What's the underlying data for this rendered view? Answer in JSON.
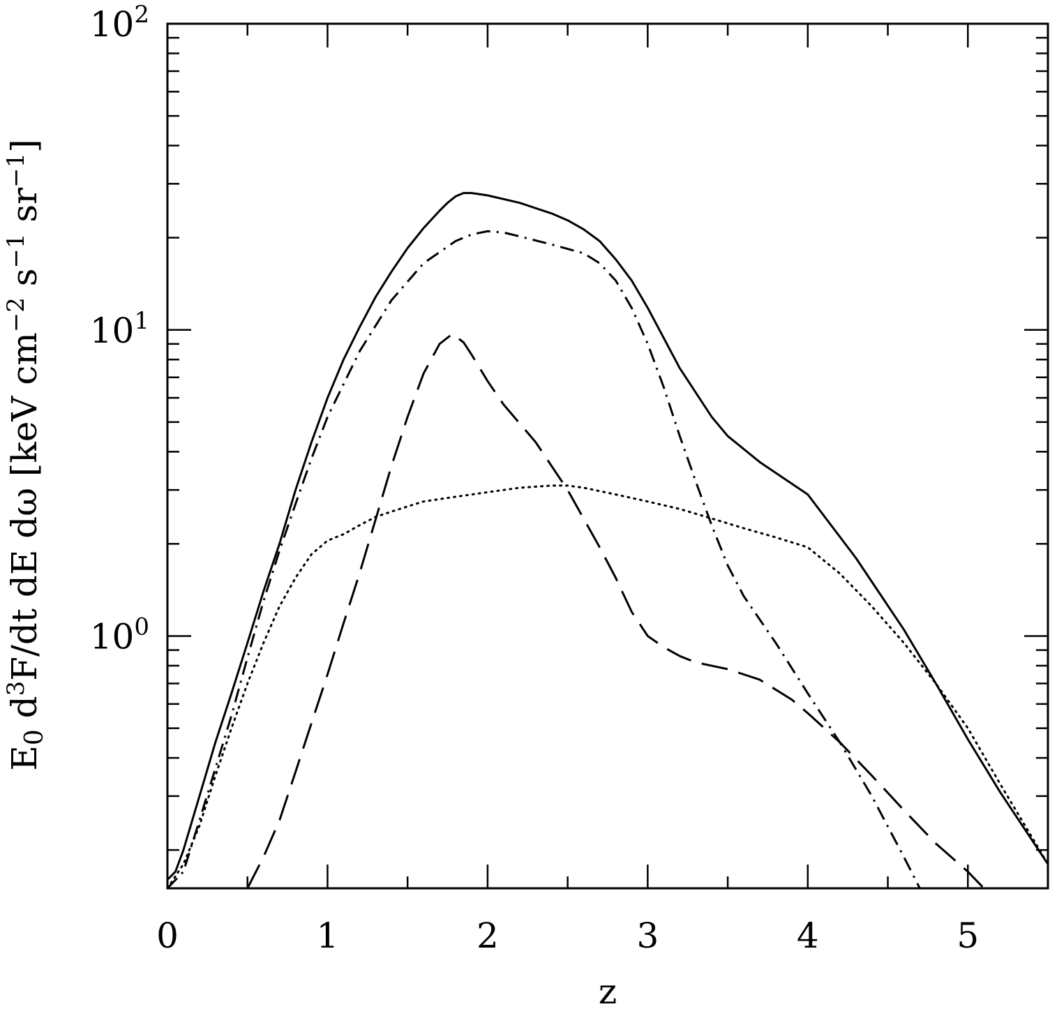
{
  "chart_data": {
    "type": "line",
    "xlabel": "z",
    "ylabel": {
      "prefix": "E",
      "sub0": "0",
      "mid1": " d",
      "sup3": "3",
      "mid2": "F/dt dE dω [keV cm",
      "supA": "−2",
      "mid3": " s",
      "supB": "−1",
      "mid4": " sr",
      "supC": "−1",
      "end": "]"
    },
    "xlim": [
      0,
      5.5
    ],
    "ylim": [
      0.15,
      100
    ],
    "yscale": "log",
    "grid": false,
    "legend": "none",
    "x_ticks": [
      {
        "value": 0,
        "label": "0"
      },
      {
        "value": 1,
        "label": "1"
      },
      {
        "value": 2,
        "label": "2"
      },
      {
        "value": 3,
        "label": "3"
      },
      {
        "value": 4,
        "label": "4"
      },
      {
        "value": 5,
        "label": "5"
      }
    ],
    "y_ticks": [
      {
        "value": 1,
        "base": "10",
        "exp": "0"
      },
      {
        "value": 10,
        "base": "10",
        "exp": "1"
      },
      {
        "value": 100,
        "base": "10",
        "exp": "2"
      }
    ],
    "series": [
      {
        "style": "solid",
        "x": [
          0.0,
          0.05,
          0.1,
          0.2,
          0.3,
          0.4,
          0.5,
          0.6,
          0.7,
          0.8,
          0.9,
          1.0,
          1.1,
          1.2,
          1.3,
          1.4,
          1.5,
          1.6,
          1.7,
          1.75,
          1.8,
          1.85,
          1.9,
          2.0,
          2.2,
          2.4,
          2.5,
          2.6,
          2.7,
          2.8,
          2.9,
          3.0,
          3.2,
          3.4,
          3.5,
          3.7,
          4.0,
          4.3,
          4.6,
          4.8,
          5.0,
          5.2,
          5.5
        ],
        "y": [
          0.16,
          0.17,
          0.2,
          0.3,
          0.45,
          0.65,
          0.95,
          1.4,
          2.0,
          3.0,
          4.3,
          6.0,
          8.0,
          10.2,
          12.8,
          15.5,
          18.5,
          21.5,
          24.5,
          26.0,
          27.3,
          28.0,
          28.0,
          27.5,
          26.0,
          24.0,
          22.8,
          21.3,
          19.5,
          17.0,
          14.5,
          11.8,
          7.5,
          5.2,
          4.5,
          3.7,
          2.9,
          1.8,
          1.05,
          0.7,
          0.46,
          0.31,
          0.18
        ]
      },
      {
        "style": "dotted",
        "x": [
          0.0,
          0.1,
          0.2,
          0.3,
          0.4,
          0.5,
          0.6,
          0.7,
          0.8,
          0.9,
          1.0,
          1.1,
          1.2,
          1.3,
          1.4,
          1.5,
          1.6,
          1.8,
          2.0,
          2.2,
          2.4,
          2.5,
          2.6,
          2.8,
          3.0,
          3.2,
          3.4,
          3.6,
          3.8,
          4.0,
          4.2,
          4.4,
          4.6,
          4.8,
          5.0,
          5.2,
          5.5
        ],
        "y": [
          0.15,
          0.18,
          0.24,
          0.35,
          0.5,
          0.7,
          0.95,
          1.25,
          1.55,
          1.85,
          2.05,
          2.15,
          2.3,
          2.45,
          2.55,
          2.65,
          2.75,
          2.85,
          2.95,
          3.05,
          3.1,
          3.1,
          3.05,
          2.9,
          2.75,
          2.6,
          2.42,
          2.25,
          2.1,
          1.95,
          1.6,
          1.25,
          0.95,
          0.7,
          0.5,
          0.33,
          0.18
        ]
      },
      {
        "style": "dashdot",
        "x": [
          0.0,
          0.1,
          0.2,
          0.3,
          0.4,
          0.5,
          0.6,
          0.7,
          0.8,
          0.9,
          1.0,
          1.2,
          1.4,
          1.6,
          1.8,
          1.9,
          2.0,
          2.1,
          2.2,
          2.4,
          2.6,
          2.7,
          2.8,
          2.9,
          3.0,
          3.1,
          3.2,
          3.3,
          3.4,
          3.5,
          3.6,
          3.8,
          4.0,
          4.2,
          4.4,
          4.6,
          4.7
        ],
        "y": [
          0.15,
          0.17,
          0.25,
          0.37,
          0.55,
          0.85,
          1.3,
          1.9,
          2.7,
          3.8,
          5.2,
          8.5,
          12.5,
          16.5,
          19.5,
          20.5,
          21.0,
          20.8,
          20.2,
          19.0,
          17.8,
          16.5,
          14.5,
          11.8,
          9.0,
          6.5,
          4.5,
          3.2,
          2.3,
          1.7,
          1.35,
          0.95,
          0.65,
          0.45,
          0.3,
          0.19,
          0.15
        ]
      },
      {
        "style": "dashed",
        "x": [
          0.5,
          0.6,
          0.7,
          0.8,
          0.9,
          1.0,
          1.1,
          1.2,
          1.3,
          1.4,
          1.5,
          1.6,
          1.7,
          1.78,
          1.85,
          1.9,
          2.0,
          2.1,
          2.3,
          2.5,
          2.7,
          2.8,
          2.9,
          3.0,
          3.1,
          3.2,
          3.3,
          3.5,
          3.7,
          3.9,
          4.0,
          4.2,
          4.4,
          4.6,
          4.8,
          5.0,
          5.1
        ],
        "y": [
          0.15,
          0.19,
          0.25,
          0.36,
          0.52,
          0.75,
          1.1,
          1.6,
          2.4,
          3.6,
          5.2,
          7.2,
          9.0,
          9.7,
          9.1,
          8.3,
          6.8,
          5.7,
          4.3,
          3.0,
          1.95,
          1.55,
          1.2,
          1.0,
          0.92,
          0.86,
          0.82,
          0.78,
          0.72,
          0.62,
          0.56,
          0.45,
          0.35,
          0.27,
          0.21,
          0.17,
          0.15
        ]
      }
    ]
  }
}
